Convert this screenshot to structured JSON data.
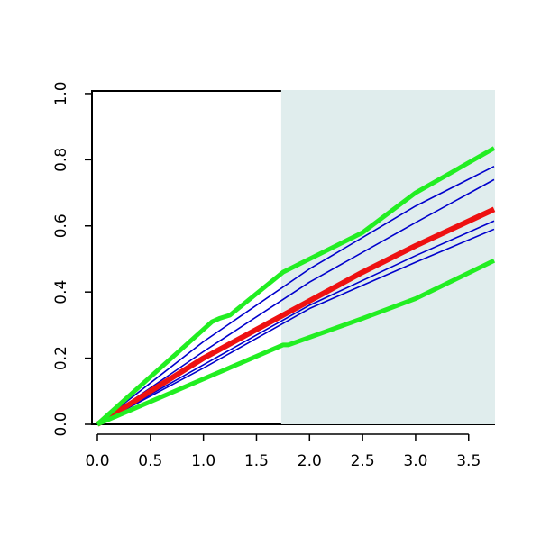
{
  "chart_data": {
    "type": "line",
    "xlim": [
      -0.051,
      3.74
    ],
    "ylim": [
      0,
      1.008
    ],
    "xticks": [
      {
        "value": 0,
        "label": "0.0"
      },
      0.5,
      {
        "value": 1,
        "label": "1.0"
      },
      1.5,
      {
        "value": 2,
        "label": "2.0"
      },
      2.5,
      {
        "value": 3,
        "label": "3.0"
      },
      3.5
    ],
    "yticks": [
      {
        "value": 0,
        "label": "0.0"
      },
      0.2,
      0.4,
      0.6,
      0.8,
      {
        "value": 1,
        "label": "1.0"
      }
    ],
    "shade_from": 1.733,
    "shade_color": "#e0eded",
    "series": [
      {
        "color": "#0000cc",
        "width": 1.6,
        "x": [
          0,
          1,
          2,
          3,
          3.74
        ],
        "values": [
          0,
          0.25,
          0.47,
          0.66,
          0.78
        ]
      },
      {
        "color": "#0000cc",
        "width": 1.6,
        "x": [
          0,
          1,
          2,
          3,
          3.74
        ],
        "values": [
          0,
          0.22,
          0.43,
          0.61,
          0.74
        ]
      },
      {
        "color": "#0000cc",
        "width": 1.6,
        "x": [
          0,
          1,
          2,
          3,
          3.74
        ],
        "values": [
          0,
          0.18,
          0.36,
          0.51,
          0.615
        ]
      },
      {
        "color": "#0000cc",
        "width": 1.6,
        "x": [
          0,
          1,
          2,
          3,
          3.74
        ],
        "values": [
          0,
          0.17,
          0.35,
          0.49,
          0.59
        ]
      },
      {
        "color": "#ee1111",
        "width": 6,
        "x": [
          0,
          1,
          1.75,
          2.5,
          3,
          3.74
        ],
        "values": [
          0,
          0.2,
          0.33,
          0.46,
          0.54,
          0.65
        ]
      },
      {
        "color": "#22ee22",
        "width": 5,
        "x": [
          0,
          1.08,
          1.15,
          1.25,
          1.75,
          2.5,
          3,
          3.74
        ],
        "values": [
          0,
          0.31,
          0.32,
          0.33,
          0.46,
          0.58,
          0.7,
          0.835
        ]
      },
      {
        "color": "#22ee22",
        "width": 5,
        "x": [
          0,
          1.75,
          1.8,
          2.5,
          3,
          3.74
        ],
        "values": [
          0,
          0.24,
          0.24,
          0.32,
          0.38,
          0.495
        ]
      }
    ]
  }
}
